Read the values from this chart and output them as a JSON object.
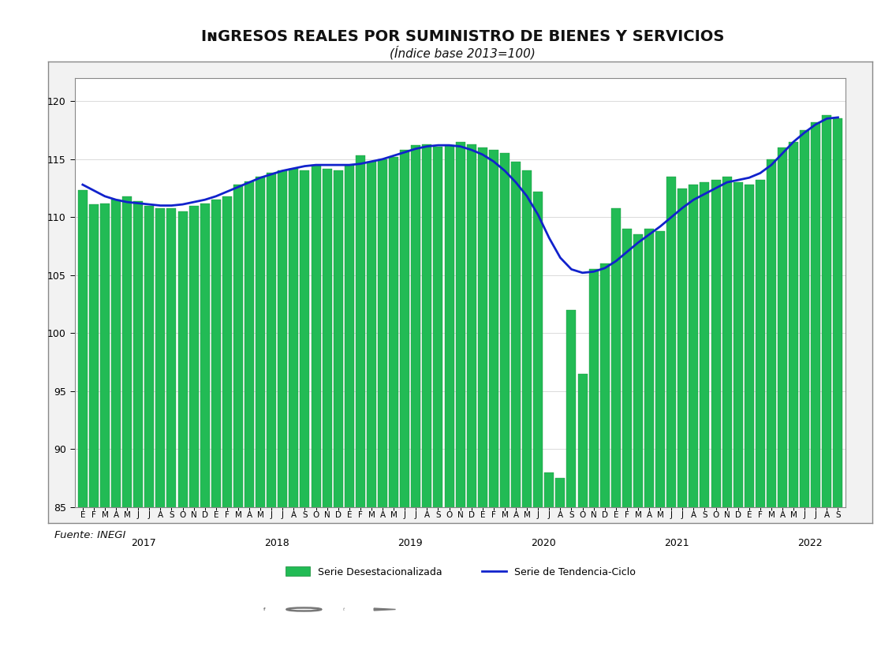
{
  "title_line1": "Ingresos reales por suministro de bienes y servicios",
  "subtitle": "(Índice base 2013=100)",
  "ylim": [
    85,
    122
  ],
  "yticks": [
    85,
    90,
    95,
    100,
    105,
    110,
    115,
    120
  ],
  "bar_color_face": "#22BB55",
  "bar_color_edge": "#118833",
  "line_color": "#1122CC",
  "bg_white": "#FFFFFF",
  "outer_bg": "#FFFFFF",
  "frame_color": "#888888",
  "source_text": "Fuente: INEGI",
  "legend_bar": "Serie Desestacionalizada",
  "legend_line": "Serie de Tendencia-Ciclo",
  "month_labels": [
    "E",
    "F",
    "M",
    "A",
    "M",
    "J",
    "J",
    "A",
    "S",
    "O",
    "N",
    "D",
    "E",
    "F",
    "M",
    "A",
    "M",
    "J",
    "J",
    "A",
    "S",
    "O",
    "N",
    "D",
    "E",
    "F",
    "M",
    "A",
    "M",
    "J",
    "J",
    "A",
    "S",
    "O",
    "N",
    "D",
    "E",
    "F",
    "M",
    "A",
    "M",
    "J",
    "J",
    "A",
    "S",
    "O",
    "N",
    "D",
    "E",
    "F",
    "M",
    "A",
    "M",
    "J",
    "J",
    "A",
    "S",
    "O",
    "N",
    "D",
    "E",
    "F",
    "M",
    "A",
    "M",
    "J",
    "J",
    "A",
    "S"
  ],
  "year_labels": [
    "2017",
    "2018",
    "2019",
    "2020",
    "2021",
    "2022"
  ],
  "year_tick_positions": [
    0,
    12,
    24,
    36,
    48,
    60
  ],
  "bar_values": [
    112.3,
    111.1,
    111.2,
    111.5,
    111.8,
    111.4,
    111.0,
    110.8,
    110.8,
    110.5,
    111.0,
    111.2,
    111.5,
    111.8,
    112.8,
    113.1,
    113.5,
    113.8,
    114.0,
    114.2,
    114.0,
    114.5,
    114.2,
    114.0,
    114.5,
    115.3,
    114.8,
    115.0,
    115.2,
    115.8,
    116.2,
    116.3,
    116.1,
    116.2,
    116.5,
    116.3,
    116.0,
    115.8,
    115.5,
    114.8,
    114.0,
    112.2,
    88.0,
    87.5,
    102.0,
    96.5,
    105.5,
    106.0,
    110.8,
    109.0,
    108.5,
    109.0,
    108.8,
    113.5,
    112.5,
    112.8,
    113.0,
    113.2,
    113.5,
    113.0,
    112.8,
    113.2,
    115.0,
    116.0,
    116.5,
    117.5,
    118.2,
    118.8,
    118.5
  ],
  "trend_values": [
    112.8,
    112.3,
    111.8,
    111.5,
    111.3,
    111.2,
    111.1,
    111.0,
    111.0,
    111.1,
    111.3,
    111.5,
    111.8,
    112.2,
    112.6,
    113.0,
    113.4,
    113.7,
    114.0,
    114.2,
    114.4,
    114.5,
    114.5,
    114.5,
    114.5,
    114.6,
    114.8,
    115.0,
    115.3,
    115.6,
    115.9,
    116.1,
    116.2,
    116.2,
    116.1,
    115.8,
    115.4,
    114.8,
    114.0,
    113.0,
    111.8,
    110.2,
    108.2,
    106.5,
    105.5,
    105.2,
    105.3,
    105.6,
    106.2,
    107.0,
    107.8,
    108.5,
    109.2,
    110.0,
    110.8,
    111.5,
    112.0,
    112.5,
    113.0,
    113.2,
    113.4,
    113.8,
    114.5,
    115.5,
    116.5,
    117.3,
    118.0,
    118.5,
    118.6
  ],
  "footer_bg": "#787878",
  "title_fontsize": 14,
  "subtitle_fontsize": 11,
  "axis_fontsize": 9,
  "month_fontsize": 7.5,
  "year_fontsize": 9
}
